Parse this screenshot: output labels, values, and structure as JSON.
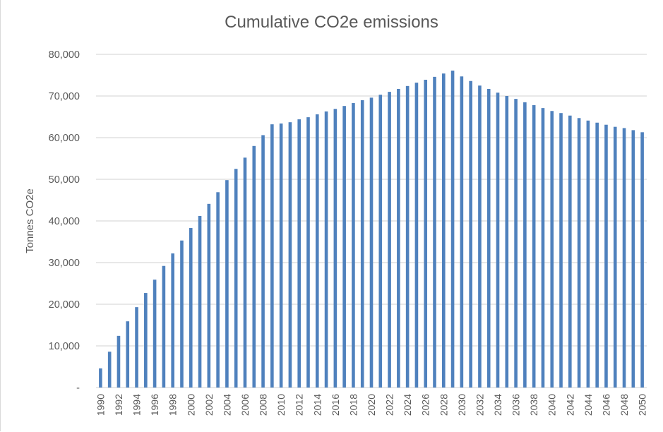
{
  "chart_data": {
    "type": "bar",
    "title": "Cumulative CO2e emissions",
    "xlabel": "",
    "ylabel": "Tonnes CO2e",
    "ylim": [
      0,
      80000
    ],
    "yticks": [
      0,
      10000,
      20000,
      30000,
      40000,
      50000,
      60000,
      70000,
      80000
    ],
    "ytick_labels": [
      "-",
      "10,000",
      "20,000",
      "30,000",
      "40,000",
      "50,000",
      "60,000",
      "70,000",
      "80,000"
    ],
    "grid": true,
    "legend": "none",
    "bar_color": "#4f81bd",
    "categories": [
      "1990",
      "1991",
      "1992",
      "1993",
      "1994",
      "1995",
      "1996",
      "1997",
      "1998",
      "1999",
      "2000",
      "2001",
      "2002",
      "2003",
      "2004",
      "2005",
      "2006",
      "2007",
      "2008",
      "2009",
      "2010",
      "2011",
      "2012",
      "2013",
      "2014",
      "2015",
      "2016",
      "2017",
      "2018",
      "2019",
      "2020",
      "2021",
      "2022",
      "2023",
      "2024",
      "2025",
      "2026",
      "2027",
      "2028",
      "2029",
      "2030",
      "2031",
      "2032",
      "2033",
      "2034",
      "2035",
      "2036",
      "2037",
      "2038",
      "2039",
      "2040",
      "2041",
      "2042",
      "2043",
      "2044",
      "2045",
      "2046",
      "2047",
      "2048",
      "2049",
      "2050"
    ],
    "xtick_labels_shown": [
      "1990",
      "1992",
      "1994",
      "1996",
      "1998",
      "2000",
      "2002",
      "2004",
      "2006",
      "2008",
      "2010",
      "2012",
      "2014",
      "2016",
      "2018",
      "2020",
      "2022",
      "2024",
      "2026",
      "2028",
      "2030",
      "2032",
      "2034",
      "2036",
      "2038",
      "2040",
      "2042",
      "2044",
      "2046",
      "2048",
      "2050"
    ],
    "values": [
      4600,
      8600,
      12400,
      15900,
      19300,
      22700,
      25900,
      29200,
      32200,
      35300,
      38300,
      41200,
      44100,
      46900,
      49800,
      52500,
      55200,
      58000,
      60600,
      63200,
      63400,
      63700,
      64400,
      64900,
      65600,
      66300,
      66900,
      67600,
      68300,
      69000,
      69600,
      70300,
      71000,
      71700,
      72400,
      73200,
      73900,
      74600,
      75400,
      76100,
      74700,
      73600,
      72500,
      71700,
      70800,
      70000,
      69300,
      68500,
      67800,
      67100,
      66400,
      65900,
      65300,
      64700,
      64100,
      63600,
      63100,
      62600,
      62300,
      61800,
      61300
    ]
  }
}
